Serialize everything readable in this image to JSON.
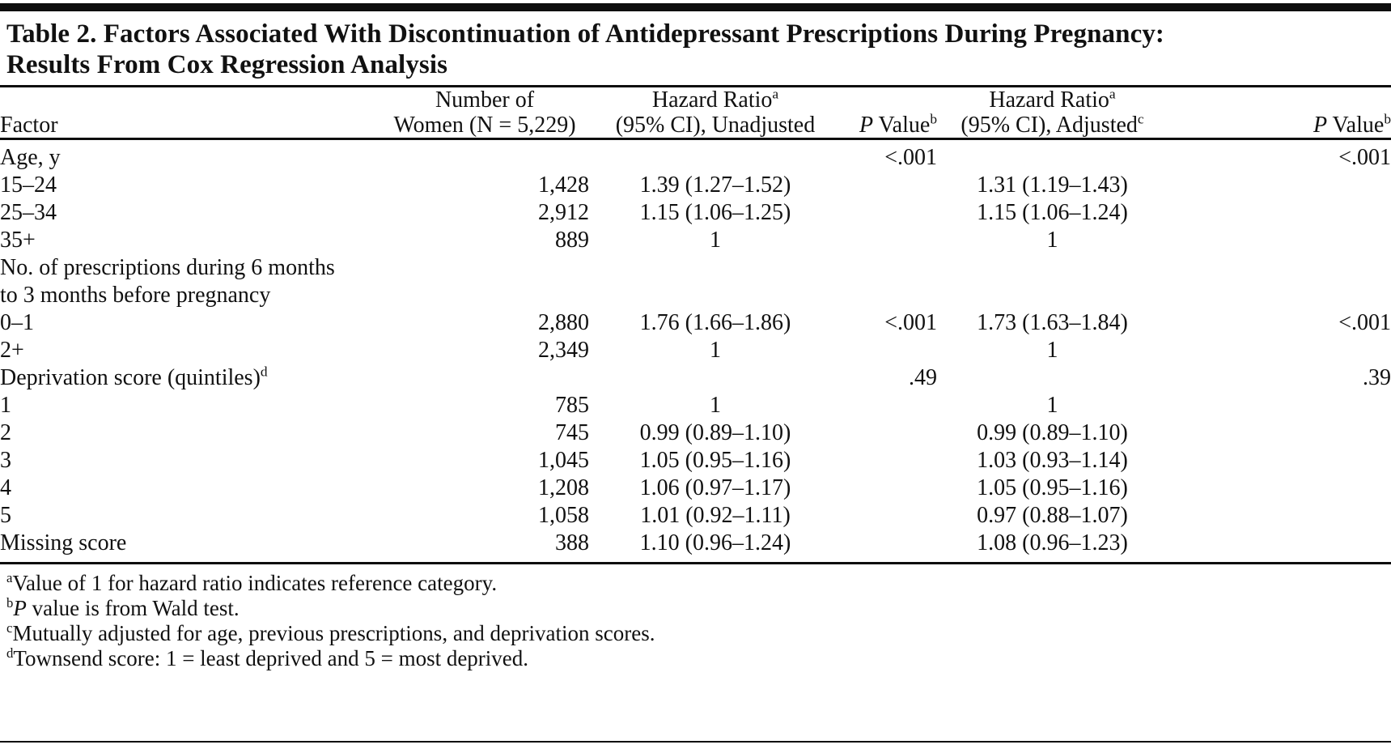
{
  "colors": {
    "background": "#ffffff",
    "text": "#111111",
    "rule": "#0d0d0d"
  },
  "table": {
    "title_line1": "Table 2. Factors Associated With Discontinuation of Antidepressant Prescriptions During Pregnancy:",
    "title_line2": "Results From Cox Regression Analysis",
    "columns": [
      {
        "key": "factor",
        "label_bottom": "Factor"
      },
      {
        "key": "n",
        "label_top": "Number of",
        "label_bottom": "Women (N = 5,229)"
      },
      {
        "key": "hr_unadj",
        "label_top": "Hazard Ratio",
        "label_top_sup": "a",
        "label_bottom": "(95% CI), Unadjusted"
      },
      {
        "key": "p_unadj",
        "label_italic": "P",
        "label_rest": " Value",
        "label_sup": "b"
      },
      {
        "key": "hr_adj",
        "label_top": "Hazard Ratio",
        "label_top_sup": "a",
        "label_bottom": "(95% CI), Adjusted",
        "label_bottom_sup": "c"
      },
      {
        "key": "p_adj",
        "label_italic": "P",
        "label_rest": " Value",
        "label_sup": "b"
      }
    ],
    "rows": [
      {
        "factor": "Age, y",
        "indent": 0,
        "n": "",
        "hr_unadj": "",
        "p_unadj": "<.001",
        "hr_adj": "",
        "p_adj": "<.001"
      },
      {
        "factor": "15–24",
        "indent": 1,
        "n": "1,428",
        "hr_unadj": "1.39 (1.27–1.52)",
        "p_unadj": "",
        "hr_adj": "1.31 (1.19–1.43)",
        "p_adj": ""
      },
      {
        "factor": "25–34",
        "indent": 1,
        "n": "2,912",
        "hr_unadj": "1.15 (1.06–1.25)",
        "p_unadj": "",
        "hr_adj": "1.15 (1.06–1.24)",
        "p_adj": ""
      },
      {
        "factor": "35+",
        "indent": 1,
        "n": "889",
        "hr_unadj": "1",
        "p_unadj": "",
        "hr_adj": "1",
        "p_adj": ""
      },
      {
        "factor": "No. of prescriptions during 6 months",
        "indent": 0,
        "n": "",
        "hr_unadj": "",
        "p_unadj": "",
        "hr_adj": "",
        "p_adj": ""
      },
      {
        "factor": "to 3 months before pregnancy",
        "indent": 1,
        "n": "",
        "hr_unadj": "",
        "p_unadj": "",
        "hr_adj": "",
        "p_adj": ""
      },
      {
        "factor": "0–1",
        "indent": 2,
        "n": "2,880",
        "hr_unadj": "1.76 (1.66–1.86)",
        "p_unadj": "<.001",
        "hr_adj": "1.73 (1.63–1.84)",
        "p_adj": "<.001"
      },
      {
        "factor": "2+",
        "indent": 2,
        "n": "2,349",
        "hr_unadj": "1",
        "p_unadj": "",
        "hr_adj": "1",
        "p_adj": ""
      },
      {
        "factor": "Deprivation score (quintiles)",
        "factor_sup": "d",
        "indent": 0,
        "n": "",
        "hr_unadj": "",
        "p_unadj": ".49",
        "hr_adj": "",
        "p_adj": ".39"
      },
      {
        "factor": "1",
        "indent": 1,
        "n": "785",
        "hr_unadj": "1",
        "p_unadj": "",
        "hr_adj": "1",
        "p_adj": ""
      },
      {
        "factor": "2",
        "indent": 1,
        "n": "745",
        "hr_unadj": "0.99 (0.89–1.10)",
        "p_unadj": "",
        "hr_adj": "0.99 (0.89–1.10)",
        "p_adj": ""
      },
      {
        "factor": "3",
        "indent": 1,
        "n": "1,045",
        "hr_unadj": "1.05 (0.95–1.16)",
        "p_unadj": "",
        "hr_adj": "1.03 (0.93–1.14)",
        "p_adj": ""
      },
      {
        "factor": "4",
        "indent": 1,
        "n": "1,208",
        "hr_unadj": "1.06 (0.97–1.17)",
        "p_unadj": "",
        "hr_adj": "1.05 (0.95–1.16)",
        "p_adj": ""
      },
      {
        "factor": "5",
        "indent": 1,
        "n": "1,058",
        "hr_unadj": "1.01 (0.92–1.11)",
        "p_unadj": "",
        "hr_adj": "0.97 (0.88–1.07)",
        "p_adj": ""
      },
      {
        "factor": "Missing score",
        "indent": 1,
        "n": "388",
        "hr_unadj": "1.10 (0.96–1.24)",
        "p_unadj": "",
        "hr_adj": "1.08 (0.96–1.23)",
        "p_adj": ""
      }
    ],
    "footnotes": [
      {
        "sup": "a",
        "text": "Value of 1 for hazard ratio indicates reference category."
      },
      {
        "sup": "b",
        "italic_lead": "P",
        "text": " value is from Wald test."
      },
      {
        "sup": "c",
        "text": "Mutually adjusted for age, previous prescriptions, and deprivation scores."
      },
      {
        "sup": "d",
        "text": "Townsend score: 1 = least deprived and 5 = most deprived."
      }
    ]
  }
}
